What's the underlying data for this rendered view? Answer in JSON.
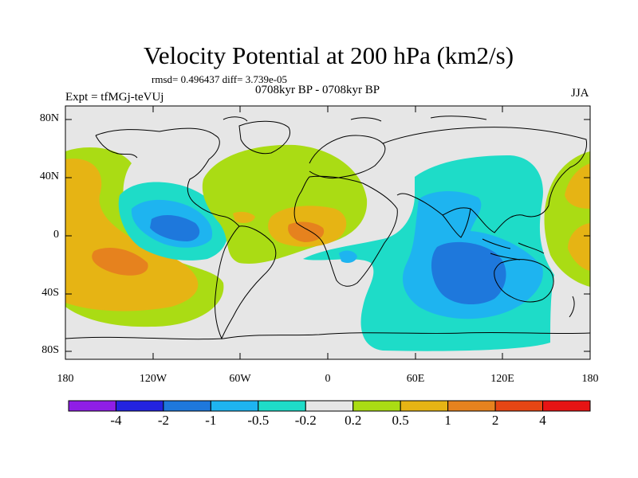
{
  "title": "Velocity Potential at 200 hPa (km2/s)",
  "stats_line": "rmsd= 0.496437 diff= 3.739e-05",
  "experiment": "Expt = tfMGj-teVUj",
  "period": "0708kyr BP - 0708kyr BP",
  "season": "JJA",
  "lat_ticks": [
    "80N",
    "40N",
    "0",
    "40S",
    "80S"
  ],
  "lon_ticks": [
    "180",
    "120W",
    "60W",
    "0",
    "60E",
    "120E",
    "180"
  ],
  "colorbar": {
    "labels": [
      "-4",
      "-2",
      "-1",
      "-0.5",
      "-0.2",
      "0.2",
      "0.5",
      "1",
      "2",
      "4"
    ],
    "colors": [
      "#8f1ee6",
      "#2323e0",
      "#1e78dc",
      "#1eb4f0",
      "#1edcc8",
      "#e6e6e6",
      "#aadc14",
      "#e6b414",
      "#e6821e",
      "#e64614",
      "#e61414"
    ]
  },
  "colors": {
    "land_outline": "#000000",
    "neutral": "#e6e6e6",
    "weak_positive": "#aadc14",
    "positive": "#e6b414",
    "strong_positive": "#e6821e",
    "stronger_positive": "#e64614",
    "weak_negative": "#1edcc8",
    "negative": "#1eb4f0",
    "strong_negative": "#1e78dc"
  }
}
